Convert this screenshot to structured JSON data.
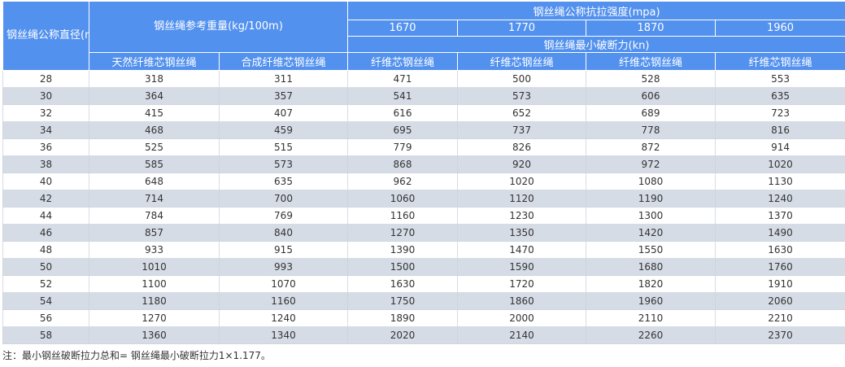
{
  "header": {
    "diameter_label": "钢丝绳公称直径(mm)",
    "weight_label": "钢丝绳参考重量(kg/100m)",
    "strength_label": "钢丝绳公称抗拉强度(mpa)",
    "strengths": [
      "1670",
      "1770",
      "1870",
      "1960"
    ],
    "breaking_label": "钢丝绳最小破断力(kn)",
    "natural_core": "天然纤维芯钢丝绳",
    "synthetic_core": "合成纤维芯钢丝绳",
    "fiber_core": "纤维芯钢丝绳"
  },
  "rows": [
    [
      "28",
      "318",
      "311",
      "471",
      "500",
      "528",
      "553"
    ],
    [
      "30",
      "364",
      "357",
      "541",
      "573",
      "606",
      "635"
    ],
    [
      "32",
      "415",
      "407",
      "616",
      "652",
      "689",
      "723"
    ],
    [
      "34",
      "468",
      "459",
      "695",
      "737",
      "778",
      "816"
    ],
    [
      "36",
      "525",
      "515",
      "779",
      "826",
      "872",
      "914"
    ],
    [
      "38",
      "585",
      "573",
      "868",
      "920",
      "972",
      "1020"
    ],
    [
      "40",
      "648",
      "635",
      "962",
      "1020",
      "1080",
      "1130"
    ],
    [
      "42",
      "714",
      "700",
      "1060",
      "1120",
      "1190",
      "1240"
    ],
    [
      "44",
      "784",
      "769",
      "1160",
      "1230",
      "1300",
      "1370"
    ],
    [
      "46",
      "857",
      "840",
      "1270",
      "1350",
      "1420",
      "1490"
    ],
    [
      "48",
      "933",
      "915",
      "1390",
      "1470",
      "1550",
      "1630"
    ],
    [
      "50",
      "1010",
      "993",
      "1500",
      "1590",
      "1680",
      "1760"
    ],
    [
      "52",
      "1100",
      "1070",
      "1630",
      "1720",
      "1820",
      "1910"
    ],
    [
      "54",
      "1180",
      "1160",
      "1750",
      "1860",
      "1960",
      "2060"
    ],
    [
      "56",
      "1270",
      "1240",
      "1890",
      "2000",
      "2110",
      "2210"
    ],
    [
      "58",
      "1360",
      "1340",
      "2020",
      "2140",
      "2260",
      "2370"
    ]
  ],
  "note": "注：最小钢丝破断拉力总和= 钢丝绳最小破断拉力1×1.177。",
  "colors": {
    "header_bg": "#5391ee",
    "header_text": "#ffffff",
    "stripe": "#d6dce6"
  }
}
